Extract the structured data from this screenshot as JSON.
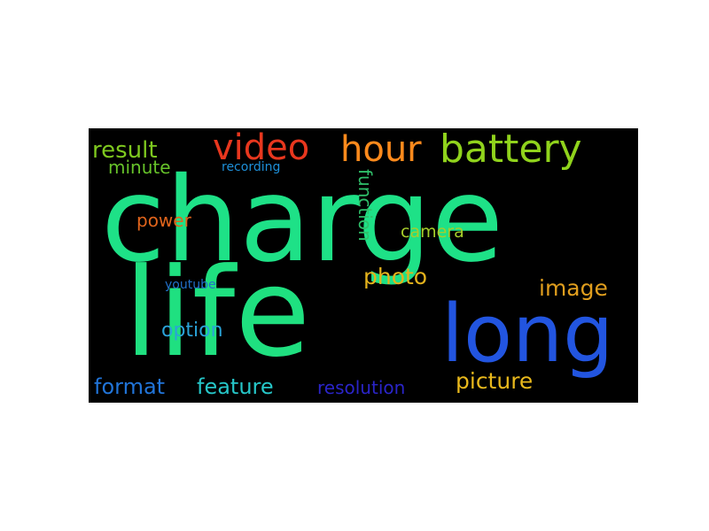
{
  "word_cloud": {
    "background": "#000000",
    "words": [
      {
        "id": "charge",
        "text": "charge",
        "color": "#1ee187",
        "orientation": "horizontal"
      },
      {
        "id": "life",
        "text": "life",
        "color": "#1fe080",
        "orientation": "horizontal"
      },
      {
        "id": "long",
        "text": "long",
        "color": "#2255e0",
        "orientation": "horizontal"
      },
      {
        "id": "battery",
        "text": "battery",
        "color": "#90d31c",
        "orientation": "horizontal"
      },
      {
        "id": "hour",
        "text": "hour",
        "color": "#ff8a1c",
        "orientation": "horizontal"
      },
      {
        "id": "video",
        "text": "video",
        "color": "#e8371e",
        "orientation": "horizontal"
      },
      {
        "id": "result",
        "text": "result",
        "color": "#7ec81f",
        "orientation": "horizontal"
      },
      {
        "id": "minute",
        "text": "minute",
        "color": "#67c32a",
        "orientation": "horizontal"
      },
      {
        "id": "recording",
        "text": "recording",
        "color": "#1e8fd8",
        "orientation": "horizontal"
      },
      {
        "id": "power",
        "text": "power",
        "color": "#e0641c",
        "orientation": "horizontal"
      },
      {
        "id": "function",
        "text": "function",
        "color": "#2fbf6a",
        "orientation": "vertical"
      },
      {
        "id": "camera",
        "text": "camera",
        "color": "#a6ce2b",
        "orientation": "horizontal"
      },
      {
        "id": "photo",
        "text": "photo",
        "color": "#e3b21c",
        "orientation": "horizontal"
      },
      {
        "id": "image",
        "text": "image",
        "color": "#e09e1e",
        "orientation": "horizontal"
      },
      {
        "id": "youtube",
        "text": "youtube",
        "color": "#2270c8",
        "orientation": "horizontal"
      },
      {
        "id": "option",
        "text": "option",
        "color": "#2aa3d8",
        "orientation": "horizontal"
      },
      {
        "id": "format",
        "text": "format",
        "color": "#2174d8",
        "orientation": "horizontal"
      },
      {
        "id": "feature",
        "text": "feature",
        "color": "#26c6c8",
        "orientation": "horizontal"
      },
      {
        "id": "resolution",
        "text": "resolution",
        "color": "#2a24c8",
        "orientation": "horizontal"
      },
      {
        "id": "picture",
        "text": "picture",
        "color": "#e8b81c",
        "orientation": "horizontal"
      }
    ]
  }
}
